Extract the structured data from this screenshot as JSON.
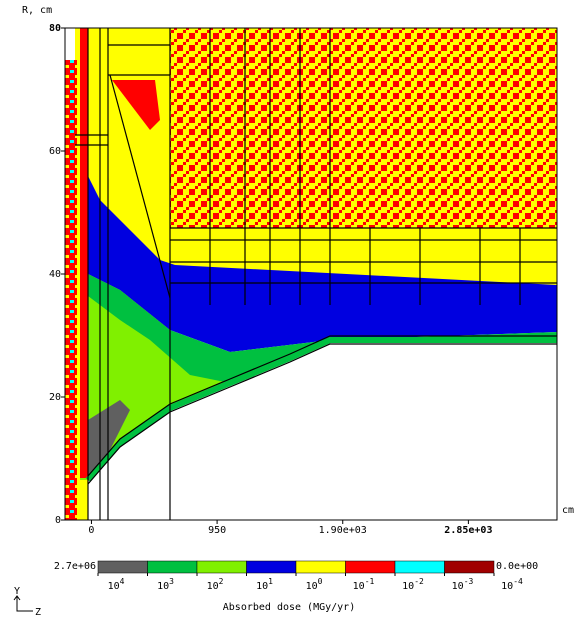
{
  "chart_data": {
    "type": "heatmap",
    "y_label": "R, cm",
    "x_label": "cm",
    "xlim": [
      -200,
      3520
    ],
    "ylim": [
      0,
      80
    ],
    "xticks": [
      0,
      950,
      {
        "value": 1900,
        "label": "1.90e+03"
      },
      {
        "value": 2850,
        "label": "2.85e+03"
      }
    ],
    "yticks": [
      0,
      20,
      40,
      60,
      80
    ],
    "colorbar": {
      "title": "Absorbed dose (MGy/yr)",
      "max_label": "2.7e+06",
      "min_label": "0.0e+00",
      "colors": [
        "#606060",
        "#00c040",
        "#80f000",
        "#0000e0",
        "#ffff00",
        "#ff0000",
        "#00ffff",
        "#a00000"
      ],
      "ticks": [
        {
          "value": 10000,
          "label": "10",
          "exponent": "4"
        },
        {
          "value": 1000,
          "label": "10",
          "exponent": "3"
        },
        {
          "value": 100,
          "label": "10",
          "exponent": "2"
        },
        {
          "value": 10,
          "label": "10",
          "exponent": "1"
        },
        {
          "value": 1,
          "label": "10",
          "exponent": "0"
        },
        {
          "value": 0.1,
          "label": "10",
          "exponent": "-1"
        },
        {
          "value": 0.01,
          "label": "10",
          "exponent": "-2"
        },
        {
          "value": 0.001,
          "label": "10",
          "exponent": "-3"
        },
        {
          "value": 0.0001,
          "label": "10",
          "exponent": "-4"
        }
      ]
    },
    "axis_indicator": {
      "vertical": "Y",
      "horizontal": "Z"
    }
  }
}
